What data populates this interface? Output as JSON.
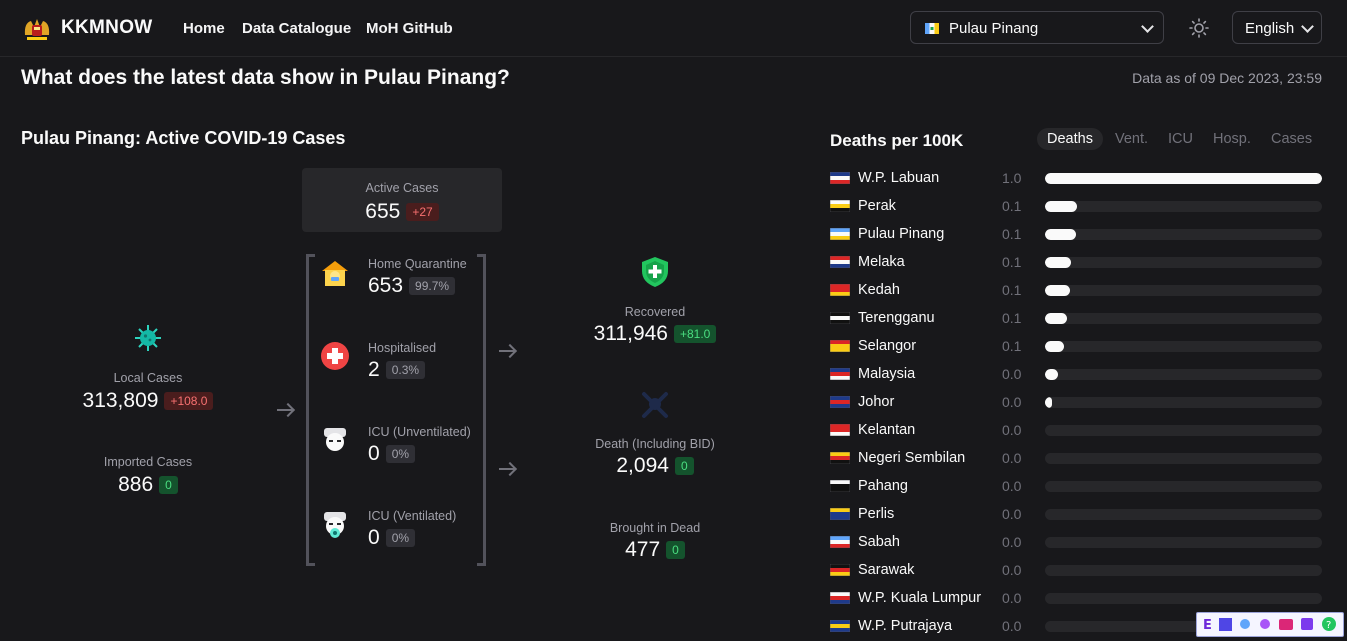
{
  "header": {
    "brand": "KKMNOW",
    "nav": [
      "Home",
      "Data Catalogue",
      "MoH GitHub"
    ],
    "state": "Pulau Pinang",
    "language": "English"
  },
  "heading": "What does the latest data show in Pulau Pinang?",
  "data_as_of": "Data as of 09 Dec 2023, 23:59",
  "active_section": {
    "title": "Pulau Pinang: Active COVID-19 Cases",
    "active": {
      "label": "Active Cases",
      "value": "655",
      "change": "+27"
    },
    "local": {
      "label": "Local Cases",
      "value": "313,809",
      "change": "+108.0"
    },
    "imported": {
      "label": "Imported Cases",
      "value": "886",
      "change": "0"
    },
    "items": [
      {
        "label": "Home Quarantine",
        "value": "653",
        "pct": "99.7%"
      },
      {
        "label": "Hospitalised",
        "value": "2",
        "pct": "0.3%"
      },
      {
        "label": "ICU (Unventilated)",
        "value": "0",
        "pct": "0%"
      },
      {
        "label": "ICU (Ventilated)",
        "value": "0",
        "pct": "0%"
      }
    ],
    "recovered": {
      "label": "Recovered",
      "value": "311,946",
      "change": "+81.0"
    },
    "death": {
      "label": "Death (Including BID)",
      "value": "2,094",
      "change": "0"
    },
    "bid": {
      "label": "Brought in Dead",
      "value": "477",
      "change": "0"
    }
  },
  "ranking": {
    "title": "Deaths per 100K",
    "tabs": [
      "Deaths",
      "Vent.",
      "ICU",
      "Hosp.",
      "Cases"
    ],
    "active_tab": "Deaths",
    "rows": [
      {
        "name": "W.P. Labuan",
        "value": "1.0",
        "bar": 1.0
      },
      {
        "name": "Perak",
        "value": "0.1",
        "bar": 0.115
      },
      {
        "name": "Pulau Pinang",
        "value": "0.1",
        "bar": 0.112
      },
      {
        "name": "Melaka",
        "value": "0.1",
        "bar": 0.095
      },
      {
        "name": "Kedah",
        "value": "0.1",
        "bar": 0.09
      },
      {
        "name": "Terengganu",
        "value": "0.1",
        "bar": 0.08
      },
      {
        "name": "Selangor",
        "value": "0.1",
        "bar": 0.07
      },
      {
        "name": "Malaysia",
        "value": "0.0",
        "bar": 0.048
      },
      {
        "name": "Johor",
        "value": "0.0",
        "bar": 0.025
      },
      {
        "name": "Kelantan",
        "value": "0.0",
        "bar": 0
      },
      {
        "name": "Negeri Sembilan",
        "value": "0.0",
        "bar": 0
      },
      {
        "name": "Pahang",
        "value": "0.0",
        "bar": 0
      },
      {
        "name": "Perlis",
        "value": "0.0",
        "bar": 0
      },
      {
        "name": "Sabah",
        "value": "0.0",
        "bar": 0
      },
      {
        "name": "Sarawak",
        "value": "0.0",
        "bar": 0
      },
      {
        "name": "W.P. Kuala Lumpur",
        "value": "0.0",
        "bar": 0
      },
      {
        "name": "W.P. Putrajaya",
        "value": "0.0",
        "bar": 0
      }
    ]
  },
  "colors": {
    "bg": "#18181b",
    "surface": "#27272a",
    "red": "#f87171",
    "green": "#4ade80"
  }
}
